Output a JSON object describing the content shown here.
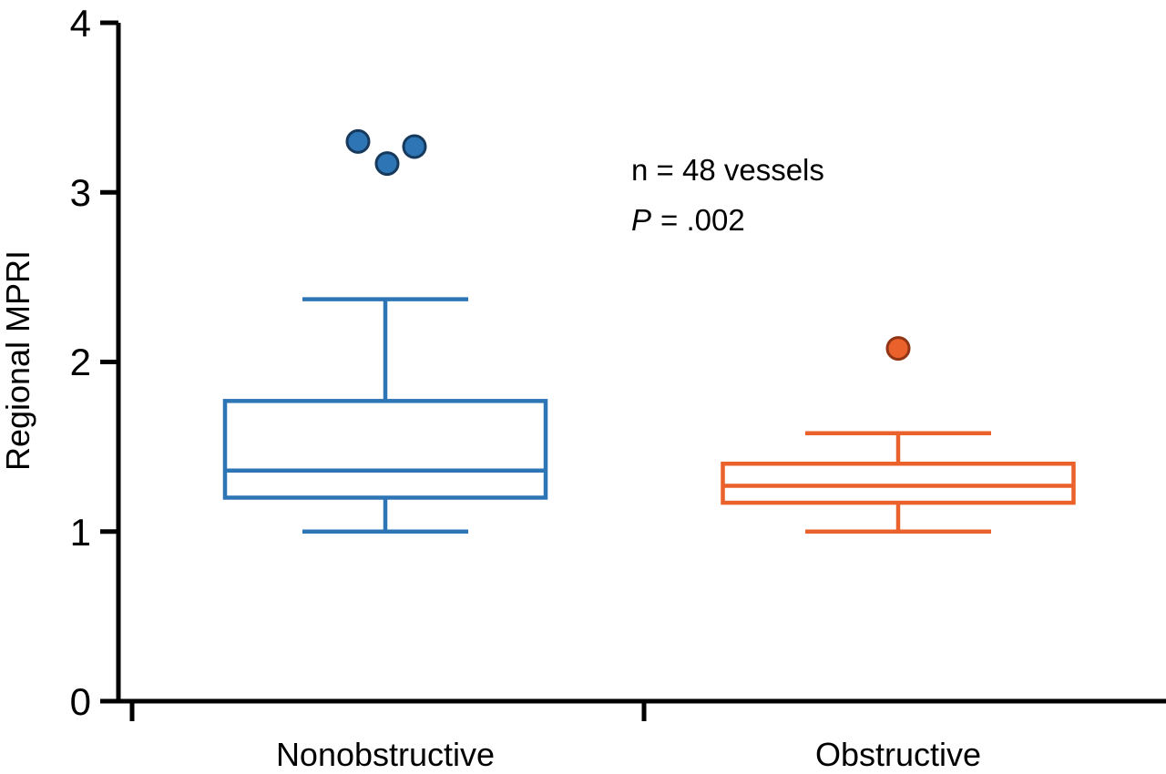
{
  "chart_data": {
    "type": "box",
    "title": "",
    "ylabel": "Regional MPRI",
    "xlabel": "",
    "ylim": [
      0,
      4
    ],
    "yticks": [
      0,
      1,
      2,
      3,
      4
    ],
    "grid": false,
    "legend": "none",
    "categories": [
      "Nonobstructive",
      "Obstructive"
    ],
    "annotations": {
      "line1": "n = 48 vessels",
      "line2_prefix": "P",
      "line2_rest": "= .002"
    },
    "series": [
      {
        "name": "Nonobstructive",
        "color": "#2E75B6",
        "outlier_edge": "#16395C",
        "whisker_low": 1.0,
        "q1": 1.2,
        "median": 1.36,
        "q3": 1.77,
        "whisker_high": 2.37,
        "outliers": [
          3.3,
          3.17,
          3.27
        ],
        "outlier_x_offsets": [
          -30,
          2,
          32
        ]
      },
      {
        "name": "Obstructive",
        "color": "#EB612B",
        "outlier_edge": "#8F3415",
        "whisker_low": 1.0,
        "q1": 1.17,
        "median": 1.27,
        "q3": 1.4,
        "whisker_high": 1.58,
        "outliers": [
          2.08
        ],
        "outlier_x_offsets": [
          0
        ]
      }
    ]
  }
}
